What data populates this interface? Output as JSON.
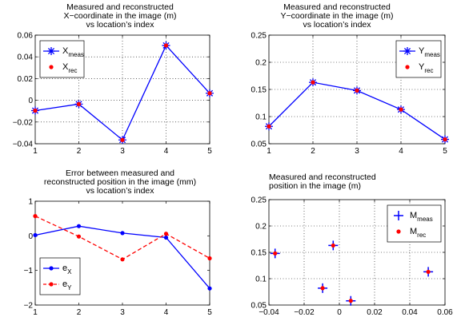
{
  "chart_data": [
    {
      "type": "line",
      "title": [
        "Measured and reconstructed",
        "X−coordinate in the image (m)",
        "vs location’s index"
      ],
      "x": [
        1,
        2,
        3,
        4,
        5
      ],
      "xlim": [
        1,
        5
      ],
      "ylim": [
        -0.04,
        0.06
      ],
      "xticks": [
        "1",
        "2",
        "3",
        "4",
        "5"
      ],
      "yticks": [
        "−0.04",
        "−0.02",
        "0",
        "0.02",
        "0.04",
        "0.06"
      ],
      "grid": true,
      "legend_position": "top-left",
      "series": [
        {
          "name": "X",
          "name_sub": "meas",
          "values": [
            -0.0095,
            -0.0035,
            -0.0365,
            0.0505,
            0.0065
          ],
          "color": "#0000ff",
          "style": "solid-asterisk"
        },
        {
          "name": "X",
          "name_sub": "rec",
          "values": [
            -0.0095,
            -0.0035,
            -0.0365,
            0.0505,
            0.0065
          ],
          "color": "#ff0000",
          "style": "dot"
        }
      ]
    },
    {
      "type": "line",
      "title": [
        "Measured and reconstructed",
        "Y−coordinate in the image (m)",
        "vs location’s index"
      ],
      "x": [
        1,
        2,
        3,
        4,
        5
      ],
      "xlim": [
        1,
        5
      ],
      "ylim": [
        0.05,
        0.25
      ],
      "xticks": [
        "1",
        "2",
        "3",
        "4",
        "5"
      ],
      "yticks": [
        "0.05",
        "0.1",
        "0.15",
        "0.2",
        "0.25"
      ],
      "grid": true,
      "legend_position": "top-right",
      "series": [
        {
          "name": "Y",
          "name_sub": "meas",
          "values": [
            0.082,
            0.163,
            0.148,
            0.113,
            0.058
          ],
          "color": "#0000ff",
          "style": "solid-asterisk"
        },
        {
          "name": "Y",
          "name_sub": "rec",
          "values": [
            0.082,
            0.163,
            0.148,
            0.113,
            0.058
          ],
          "color": "#ff0000",
          "style": "dot"
        }
      ]
    },
    {
      "type": "line",
      "title": [
        "Error between measured and",
        "reconstructed position in the image (mm)",
        "vs location’s index"
      ],
      "x": [
        1,
        2,
        3,
        4,
        5
      ],
      "xlim": [
        1,
        5
      ],
      "ylim": [
        -2,
        1
      ],
      "xticks": [
        "1",
        "2",
        "3",
        "4",
        "5"
      ],
      "yticks": [
        "−2",
        "−1",
        "0",
        "1"
      ],
      "grid": false,
      "legend_position": "bottom-left",
      "series": [
        {
          "name": "e",
          "name_sub": "X",
          "values": [
            0.02,
            0.28,
            0.08,
            -0.05,
            -1.52
          ],
          "color": "#0000ff",
          "style": "solid-dot"
        },
        {
          "name": "e",
          "name_sub": "Y",
          "values": [
            0.57,
            -0.02,
            -0.68,
            0.06,
            -0.65
          ],
          "color": "#ff0000",
          "style": "dashed-dot"
        }
      ]
    },
    {
      "type": "scatter",
      "title": [
        "Measured and reconstructed",
        "position in the image (m)"
      ],
      "xlim": [
        -0.04,
        0.06
      ],
      "ylim": [
        0.05,
        0.25
      ],
      "xticks": [
        "−0.04",
        "−0.02",
        "0",
        "0.02",
        "0.04",
        "0.06"
      ],
      "yticks": [
        "0.05",
        "0.1",
        "0.15",
        "0.2",
        "0.25"
      ],
      "grid": true,
      "legend_position": "top-right",
      "series": [
        {
          "name": "M",
          "name_sub": "meas",
          "x": [
            -0.0095,
            -0.0035,
            -0.0365,
            0.0505,
            0.0065
          ],
          "y": [
            0.082,
            0.163,
            0.148,
            0.113,
            0.058
          ],
          "color": "#0000ff",
          "style": "plus"
        },
        {
          "name": "M",
          "name_sub": "rec",
          "x": [
            -0.0095,
            -0.0035,
            -0.0365,
            0.0505,
            0.0065
          ],
          "y": [
            0.082,
            0.163,
            0.148,
            0.113,
            0.058
          ],
          "color": "#ff0000",
          "style": "dot"
        }
      ]
    }
  ]
}
